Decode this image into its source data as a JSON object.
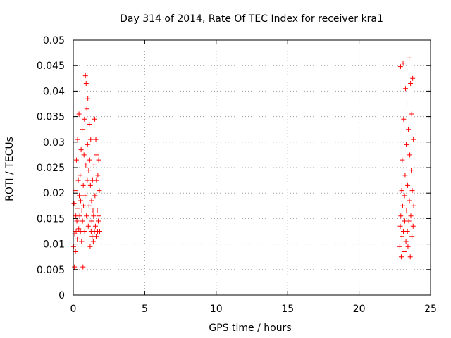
{
  "chart_data": {
    "type": "scatter",
    "title": "Day 314 of 2014, Rate Of TEC Index for receiver kra1",
    "xlabel": "GPS time / hours",
    "ylabel": "ROTI / TECUs",
    "xlim": [
      0,
      25
    ],
    "ylim": [
      0,
      0.05
    ],
    "x_ticks": [
      "0",
      "5",
      "10",
      "15",
      "20",
      "25"
    ],
    "y_ticks": [
      "0",
      "0.005",
      "0.01",
      "0.015",
      "0.02",
      "0.025",
      "0.03",
      "0.035",
      "0.04",
      "0.045",
      "0.05"
    ],
    "x_tick_values": [
      0,
      5,
      10,
      15,
      20,
      25
    ],
    "y_tick_values": [
      0,
      0.005,
      0.01,
      0.015,
      0.02,
      0.025,
      0.03,
      0.035,
      0.04,
      0.045,
      0.05
    ],
    "grid": true,
    "marker": "+",
    "colors": {
      "series": "#ff0000",
      "grid": "#a0a0a0",
      "axis": "#000000"
    },
    "series": [
      {
        "name": "ROTI",
        "points": [
          [
            0.02,
            0.0095
          ],
          [
            0.05,
            0.018
          ],
          [
            0.08,
            0.0055
          ],
          [
            0.1,
            0.012
          ],
          [
            0.12,
            0.0205
          ],
          [
            0.15,
            0.0085
          ],
          [
            0.18,
            0.0155
          ],
          [
            0.2,
            0.0125
          ],
          [
            0.22,
            0.0265
          ],
          [
            0.25,
            0.0145
          ],
          [
            0.28,
            0.011
          ],
          [
            0.3,
            0.0305
          ],
          [
            0.32,
            0.017
          ],
          [
            0.35,
            0.0225
          ],
          [
            0.38,
            0.013
          ],
          [
            0.4,
            0.0355
          ],
          [
            0.42,
            0.0195
          ],
          [
            0.45,
            0.0155
          ],
          [
            0.48,
            0.0235
          ],
          [
            0.5,
            0.0125
          ],
          [
            0.52,
            0.0185
          ],
          [
            0.55,
            0.0285
          ],
          [
            0.58,
            0.0105
          ],
          [
            0.6,
            0.0165
          ],
          [
            0.62,
            0.0325
          ],
          [
            0.65,
            0.0145
          ],
          [
            0.68,
            0.0055
          ],
          [
            0.7,
            0.0215
          ],
          [
            0.72,
            0.0175
          ],
          [
            0.75,
            0.0275
          ],
          [
            0.78,
            0.0345
          ],
          [
            0.8,
            0.0125
          ],
          [
            0.82,
            0.0195
          ],
          [
            0.85,
            0.043
          ],
          [
            0.88,
            0.0255
          ],
          [
            0.9,
            0.0415
          ],
          [
            0.92,
            0.0155
          ],
          [
            0.95,
            0.0365
          ],
          [
            0.98,
            0.0225
          ],
          [
            1.0,
            0.0295
          ],
          [
            1.02,
            0.0385
          ],
          [
            1.05,
            0.0135
          ],
          [
            1.08,
            0.0245
          ],
          [
            1.1,
            0.0175
          ],
          [
            1.12,
            0.0335
          ],
          [
            1.15,
            0.0265
          ],
          [
            1.18,
            0.0095
          ],
          [
            1.2,
            0.0215
          ],
          [
            1.22,
            0.0305
          ],
          [
            1.25,
            0.0125
          ],
          [
            1.28,
            0.0185
          ],
          [
            1.3,
            0.0145
          ],
          [
            1.32,
            0.0115
          ],
          [
            1.35,
            0.0225
          ],
          [
            1.38,
            0.0165
          ],
          [
            1.4,
            0.0105
          ],
          [
            1.42,
            0.0155
          ],
          [
            1.45,
            0.0255
          ],
          [
            1.48,
            0.0125
          ],
          [
            1.5,
            0.0345
          ],
          [
            1.52,
            0.0195
          ],
          [
            1.55,
            0.0135
          ],
          [
            1.58,
            0.0305
          ],
          [
            1.6,
            0.0115
          ],
          [
            1.62,
            0.0225
          ],
          [
            1.65,
            0.0275
          ],
          [
            1.68,
            0.0165
          ],
          [
            1.7,
            0.0125
          ],
          [
            1.72,
            0.0235
          ],
          [
            1.75,
            0.0145
          ],
          [
            1.78,
            0.0265
          ],
          [
            1.8,
            0.0155
          ],
          [
            1.82,
            0.0205
          ],
          [
            1.85,
            0.0125
          ],
          [
            22.85,
            0.0095
          ],
          [
            22.88,
            0.0135
          ],
          [
            22.9,
            0.0448
          ],
          [
            22.92,
            0.0155
          ],
          [
            22.95,
            0.0075
          ],
          [
            22.98,
            0.0205
          ],
          [
            23.0,
            0.0115
          ],
          [
            23.02,
            0.0265
          ],
          [
            23.05,
            0.0175
          ],
          [
            23.08,
            0.0455
          ],
          [
            23.1,
            0.0125
          ],
          [
            23.12,
            0.0345
          ],
          [
            23.15,
            0.0085
          ],
          [
            23.18,
            0.0195
          ],
          [
            23.2,
            0.0145
          ],
          [
            23.22,
            0.0235
          ],
          [
            23.25,
            0.0405
          ],
          [
            23.28,
            0.0105
          ],
          [
            23.3,
            0.0295
          ],
          [
            23.32,
            0.0165
          ],
          [
            23.35,
            0.0375
          ],
          [
            23.38,
            0.0125
          ],
          [
            23.4,
            0.0215
          ],
          [
            23.42,
            0.0095
          ],
          [
            23.45,
            0.0325
          ],
          [
            23.48,
            0.0145
          ],
          [
            23.5,
            0.0465
          ],
          [
            23.52,
            0.0185
          ],
          [
            23.55,
            0.0275
          ],
          [
            23.58,
            0.0075
          ],
          [
            23.6,
            0.0415
          ],
          [
            23.62,
            0.0155
          ],
          [
            23.65,
            0.0245
          ],
          [
            23.68,
            0.0355
          ],
          [
            23.7,
            0.0115
          ],
          [
            23.72,
            0.0205
          ],
          [
            23.75,
            0.0425
          ],
          [
            23.78,
            0.0135
          ],
          [
            23.8,
            0.0305
          ],
          [
            23.82,
            0.0175
          ]
        ]
      }
    ]
  }
}
